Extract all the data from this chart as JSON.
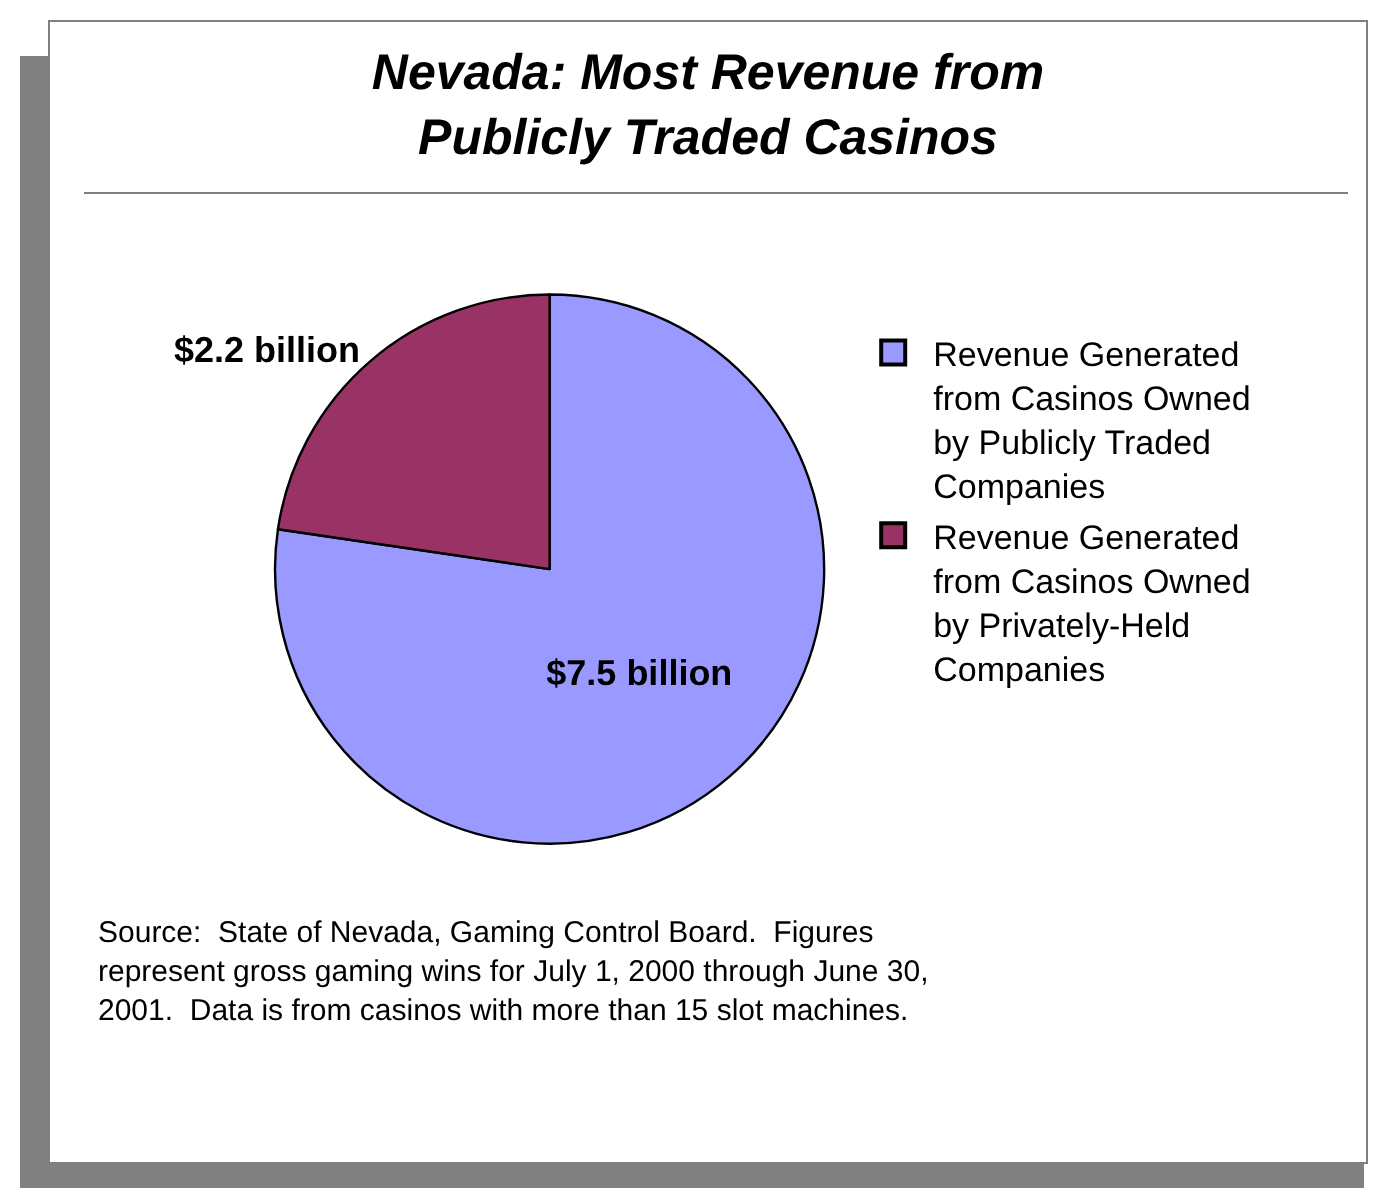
{
  "chart_data": {
    "type": "pie",
    "title": "Nevada: Most Revenue from Publicly Traded Casinos",
    "categories": [
      "Revenue Generated from Casinos Owned by Publicly Traded Companies",
      "Revenue Generated from Casinos Owned by Privately-Held Companies"
    ],
    "values": [
      7.5,
      2.2
    ],
    "colors": [
      "#9999ff",
      "#993366"
    ],
    "value_labels": [
      "$7.5 billion",
      "$2.2 billion"
    ],
    "legend": "right",
    "annotations": [
      "Source:  State of Nevada, Gaming Control Board.  Figures represent gross gaming wins for July 1, 2000 through June 30, 2001.  Data is from casinos with more than 15 slot machines."
    ]
  }
}
